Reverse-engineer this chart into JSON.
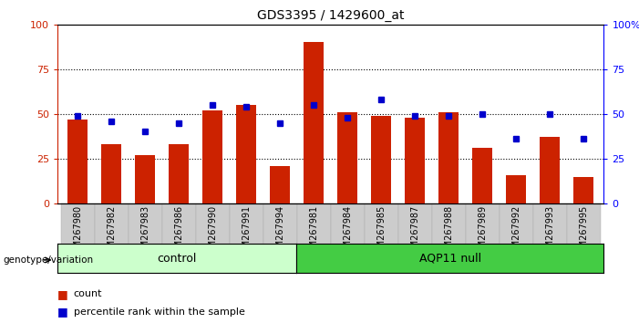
{
  "title": "GDS3395 / 1429600_at",
  "samples": [
    "GSM267980",
    "GSM267982",
    "GSM267983",
    "GSM267986",
    "GSM267990",
    "GSM267991",
    "GSM267994",
    "GSM267981",
    "GSM267984",
    "GSM267985",
    "GSM267987",
    "GSM267988",
    "GSM267989",
    "GSM267992",
    "GSM267993",
    "GSM267995"
  ],
  "counts": [
    47,
    33,
    27,
    33,
    52,
    55,
    21,
    90,
    51,
    49,
    48,
    51,
    31,
    16,
    37,
    15
  ],
  "percentiles": [
    49,
    46,
    40,
    45,
    55,
    54,
    45,
    55,
    48,
    58,
    49,
    49,
    50,
    36,
    50,
    36
  ],
  "n_control": 7,
  "n_aqp11": 9,
  "control_color": "#ccffcc",
  "aqp11_color": "#44cc44",
  "bar_color": "#cc2200",
  "dot_color": "#0000cc",
  "bg_color": "#cccccc",
  "ylim": [
    0,
    100
  ],
  "yticks": [
    0,
    25,
    50,
    75,
    100
  ],
  "grid_lines": [
    25,
    50,
    75
  ],
  "figsize": [
    7.01,
    3.54
  ],
  "dpi": 100
}
